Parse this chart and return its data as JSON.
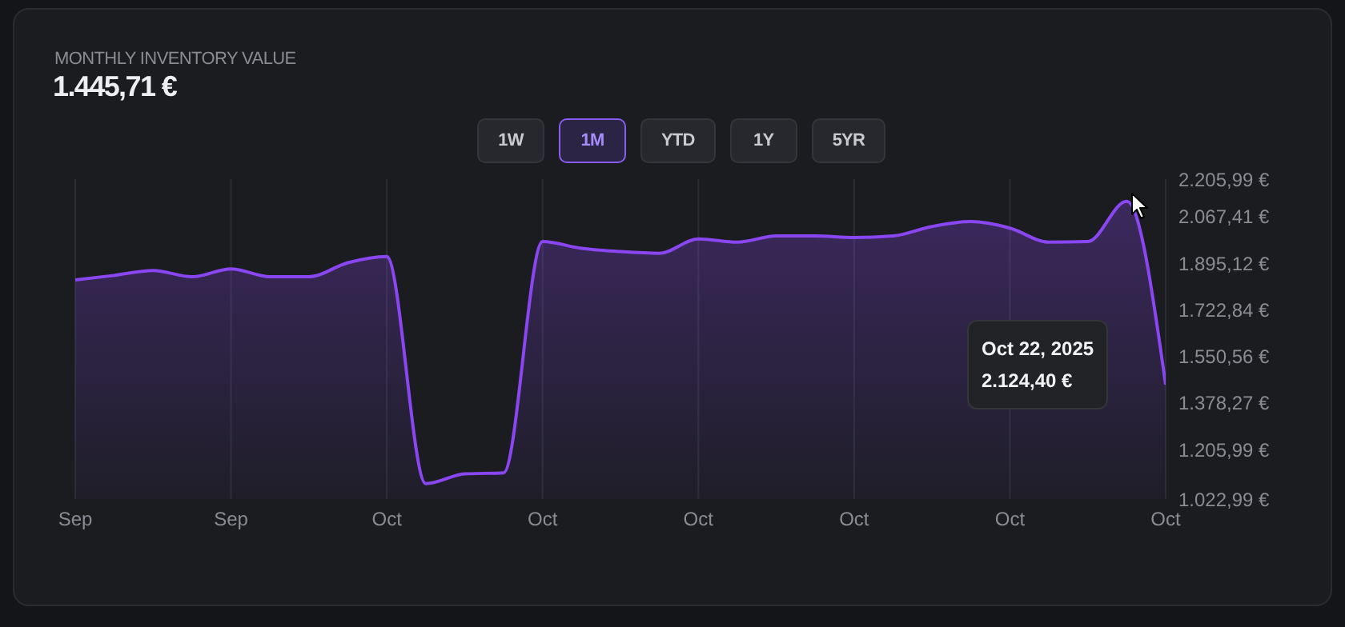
{
  "chart_data": {
    "type": "area",
    "title": "MONTHLY INVENTORY VALUE",
    "subtitle": "1.445,71 €",
    "categories": [
      "Sep",
      null,
      null,
      null,
      "Sep",
      null,
      null,
      null,
      "Oct",
      null,
      null,
      null,
      "Oct",
      null,
      null,
      null,
      "Oct",
      null,
      null,
      null,
      "Oct",
      null,
      null,
      null,
      "Oct",
      null,
      null,
      null,
      "Oct"
    ],
    "series": [
      {
        "color": "#8a46f0",
        "values": [
          1833,
          1850,
          1868,
          1845,
          1874,
          1845,
          1845,
          1897,
          1920,
          1080,
          1116,
          1120,
          1975,
          1950,
          1938,
          1932,
          1985,
          1973,
          1996,
          1996,
          1990,
          1996,
          2031,
          2049,
          2025,
          1973,
          1975,
          2124,
          1446
        ]
      }
    ],
    "ylim": [
      1022.99,
      2205.99
    ],
    "yticks": [
      {
        "value": 1022.99,
        "label": "1.022,99 €"
      },
      {
        "value": 1205.99,
        "label": "1.205,99 €"
      },
      {
        "value": 1378.27,
        "label": "1.378,27 €"
      },
      {
        "value": 1550.56,
        "label": "1.550,56 €"
      },
      {
        "value": 1722.84,
        "label": "1.722,84 €"
      },
      {
        "value": 1895.12,
        "label": "1.895,12 €"
      },
      {
        "value": 2067.41,
        "label": "2.067,41 €"
      },
      {
        "value": 2205.99,
        "label": "2.205,99 €"
      }
    ],
    "grid": "x",
    "legend": false,
    "annotations": [
      "1W",
      "1M",
      "YTD",
      "1Y",
      "5YR",
      "Oct 22, 2025",
      "2.124,40 €"
    ]
  }
}
